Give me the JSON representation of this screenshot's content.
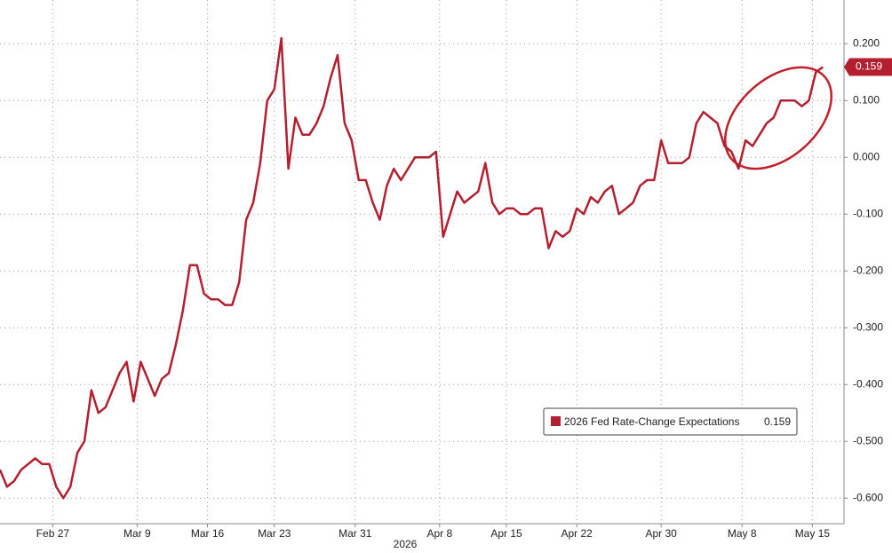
{
  "chart_data": {
    "type": "line",
    "xlabel": "2026",
    "series": [
      {
        "name": "2026 Fed Rate-Change Expectations",
        "color": "#b31f2e",
        "values": [
          -0.55,
          -0.58,
          -0.57,
          -0.55,
          -0.54,
          -0.53,
          -0.54,
          -0.54,
          -0.58,
          -0.6,
          -0.58,
          -0.52,
          -0.5,
          -0.41,
          -0.45,
          -0.44,
          -0.41,
          -0.38,
          -0.36,
          -0.43,
          -0.36,
          -0.39,
          -0.42,
          -0.39,
          -0.38,
          -0.33,
          -0.27,
          -0.19,
          -0.19,
          -0.24,
          -0.25,
          -0.25,
          -0.26,
          -0.26,
          -0.22,
          -0.11,
          -0.08,
          -0.01,
          0.1,
          0.12,
          0.21,
          -0.02,
          0.07,
          0.04,
          0.04,
          0.06,
          0.09,
          0.14,
          0.18,
          0.06,
          0.03,
          -0.04,
          -0.04,
          -0.08,
          -0.11,
          -0.05,
          -0.02,
          -0.04,
          -0.02,
          0.0,
          0.0,
          0.0,
          0.01,
          -0.14,
          -0.1,
          -0.06,
          -0.08,
          -0.07,
          -0.06,
          -0.01,
          -0.08,
          -0.1,
          -0.09,
          -0.09,
          -0.1,
          -0.1,
          -0.09,
          -0.09,
          -0.16,
          -0.13,
          -0.14,
          -0.13,
          -0.09,
          -0.1,
          -0.07,
          -0.08,
          -0.06,
          -0.05,
          -0.1,
          -0.09,
          -0.08,
          -0.05,
          -0.04,
          -0.04,
          0.03,
          -0.01,
          -0.01,
          -0.01,
          0.0,
          0.06,
          0.08,
          0.07,
          0.06,
          0.02,
          0.01,
          -0.02,
          0.03,
          0.02,
          0.04,
          0.06,
          0.07,
          0.1,
          0.1,
          0.1,
          0.09,
          0.1,
          0.15,
          0.159
        ]
      }
    ],
    "xlim": [
      0,
      120
    ],
    "xticks": [
      {
        "value": 7.5,
        "label": "Feb 27"
      },
      {
        "value": 19.5,
        "label": "Mar 9"
      },
      {
        "value": 29.5,
        "label": "Mar 16"
      },
      {
        "value": 39,
        "label": "Mar 23"
      },
      {
        "value": 50.5,
        "label": "Mar 31"
      },
      {
        "value": 62.5,
        "label": "Apr 8"
      },
      {
        "value": 72,
        "label": "Apr 15"
      },
      {
        "value": 82,
        "label": "Apr 22"
      },
      {
        "value": 94,
        "label": "Apr 30"
      },
      {
        "value": 105.5,
        "label": "May 8"
      },
      {
        "value": 115.5,
        "label": "May 15"
      }
    ],
    "ylim": [
      -0.645,
      0.277
    ],
    "yticks": [
      {
        "value": 0.2,
        "label": "0.200"
      },
      {
        "value": 0.1,
        "label": "0.100"
      },
      {
        "value": 0,
        "label": "0.000"
      },
      {
        "value": -0.1,
        "label": "-0.100"
      },
      {
        "value": -0.2,
        "label": "-0.200"
      },
      {
        "value": -0.3,
        "label": "-0.300"
      },
      {
        "value": -0.4,
        "label": "-0.400"
      },
      {
        "value": -0.5,
        "label": "-0.500"
      },
      {
        "value": -0.6,
        "label": "-0.600"
      }
    ],
    "grid": true
  }
}
